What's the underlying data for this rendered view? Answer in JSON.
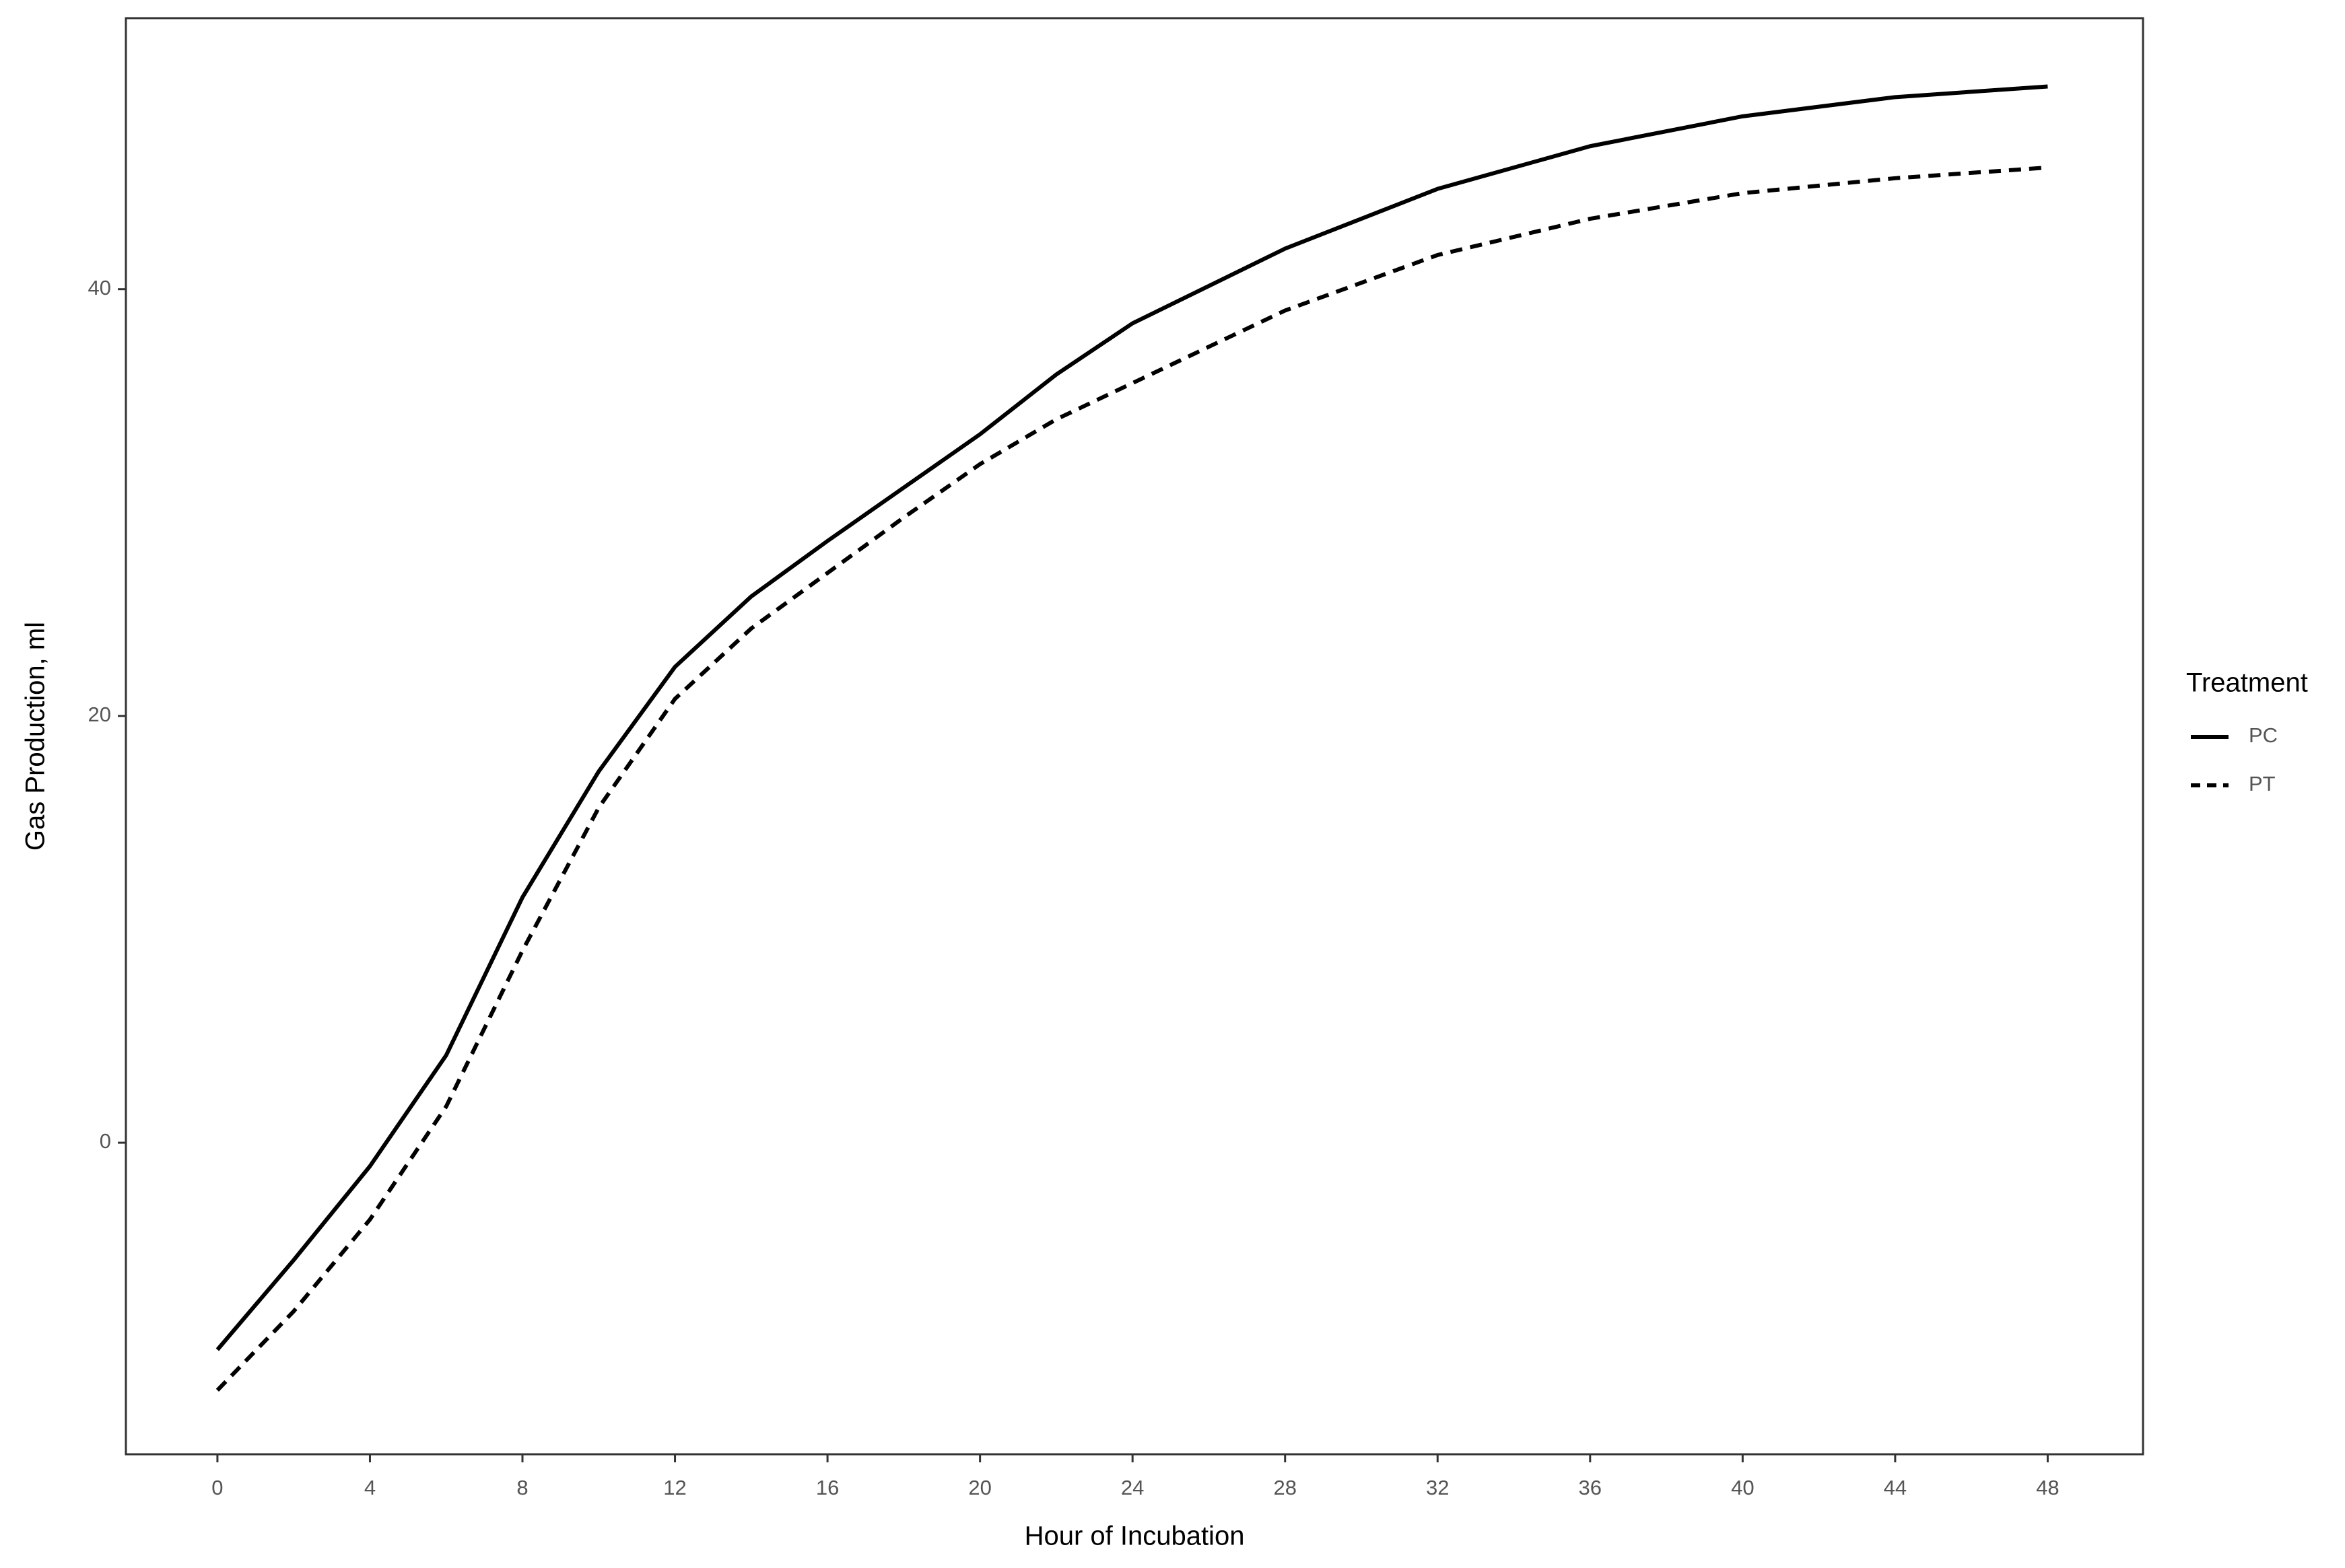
{
  "chart_data": {
    "type": "line",
    "x_label": "Hour of Incubation",
    "y_label": "Gas Production, ml",
    "legend_title": "Treatment",
    "legend_position": "right",
    "x": [
      0,
      2,
      4,
      6,
      8,
      10,
      12,
      14,
      16,
      18,
      20,
      22,
      24,
      28,
      32,
      36,
      40,
      44,
      48
    ],
    "series": [
      {
        "name": "PC",
        "color": "#000000",
        "linestyle": "solid",
        "values": [
          -9.7,
          -5.5,
          -1.1,
          4.1,
          11.5,
          17.4,
          22.3,
          25.6,
          28.2,
          30.7,
          33.2,
          36.0,
          38.4,
          41.9,
          44.7,
          46.7,
          48.1,
          49.0,
          49.5
        ]
      },
      {
        "name": "PT",
        "color": "#000000",
        "linestyle": "dashed",
        "values": [
          -11.6,
          -7.9,
          -3.6,
          1.7,
          9.0,
          15.7,
          20.8,
          24.1,
          26.7,
          29.3,
          31.8,
          33.9,
          35.6,
          39.0,
          41.6,
          43.3,
          44.5,
          45.2,
          45.7
        ]
      }
    ],
    "xlim": [
      -2.4,
      50.5
    ],
    "ylim": [
      -14.6,
      52.7
    ],
    "xticks": [
      0,
      4,
      8,
      12,
      16,
      20,
      24,
      28,
      32,
      36,
      40,
      44,
      48
    ],
    "yticks": [
      0,
      20,
      40
    ],
    "grid": false
  }
}
